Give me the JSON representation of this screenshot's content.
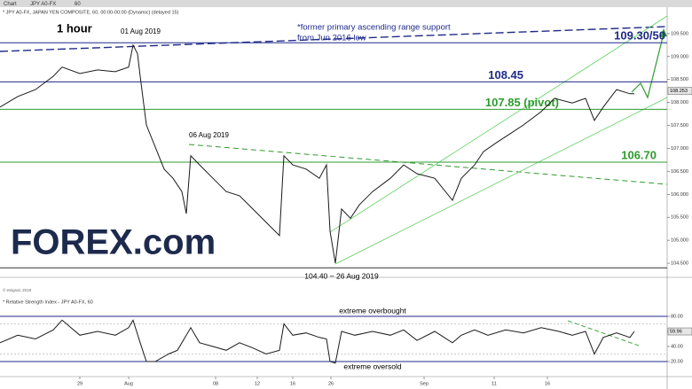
{
  "header": {
    "tab": "Chart",
    "symbol": "JPY A0-FX",
    "interval": "60",
    "description": "* JPY A0-FX, JAPAN YEN COMPOSITE, 60, 00:00-00:00 (Dynamic) (delayed 15)",
    "copyright": "© eSignal, 2019"
  },
  "logo": "FOREX.com",
  "chart_data": [
    {
      "type": "line",
      "title": "1 hour",
      "color": "#1a1a1a",
      "xlim": [
        0,
        752
      ],
      "ylim": [
        104.25,
        110.0
      ],
      "yticks": [
        {
          "value": 104.5,
          "label": "104.500"
        },
        {
          "value": 105,
          "label": "105.000"
        },
        {
          "value": 105.5,
          "label": "105.500"
        },
        {
          "value": 106,
          "label": "106.000"
        },
        {
          "value": 106.5,
          "label": "106.500"
        },
        {
          "value": 107,
          "label": "107.000"
        },
        {
          "value": 107.5,
          "label": "107.500"
        },
        {
          "value": 108,
          "label": "108.000"
        },
        {
          "value": 108.5,
          "label": "108.500"
        },
        {
          "value": 109,
          "label": "109.000"
        },
        {
          "value": 109.5,
          "label": "109.500"
        }
      ],
      "last_price": {
        "value": 108.253,
        "label": "108.253"
      },
      "x": [
        0,
        20,
        40,
        60,
        70,
        90,
        110,
        130,
        145,
        150,
        155,
        158,
        165,
        175,
        185,
        195,
        205,
        210,
        215,
        225,
        240,
        255,
        270,
        285,
        300,
        315,
        320,
        330,
        345,
        360,
        368,
        372,
        378,
        385,
        395,
        405,
        420,
        440,
        455,
        470,
        490,
        510,
        520,
        535,
        545,
        560,
        575,
        590,
        610,
        625,
        645,
        660,
        670,
        680,
        695,
        710,
        715
      ],
      "values": [
        107.9,
        108.13,
        108.28,
        108.57,
        108.77,
        108.63,
        108.71,
        108.67,
        108.77,
        109.25,
        109.06,
        108.57,
        107.51,
        107.03,
        106.55,
        106.35,
        106.06,
        105.58,
        106.84,
        106.64,
        106.35,
        106.06,
        105.97,
        105.68,
        105.39,
        105.1,
        106.84,
        106.64,
        106.55,
        106.35,
        106.64,
        105.2,
        104.5,
        105.68,
        105.48,
        105.77,
        106.06,
        106.35,
        106.64,
        106.45,
        106.35,
        105.87,
        106.35,
        106.64,
        106.93,
        107.13,
        107.32,
        107.51,
        107.8,
        108.09,
        107.99,
        108.09,
        107.61,
        107.9,
        108.28,
        108.19,
        108.19
      ],
      "levels": [
        {
          "value": 109.3,
          "label": "109.30/50",
          "color": "#1f2a8a"
        },
        {
          "value": 108.45,
          "label": "108.45",
          "color": "#1f2a8a"
        },
        {
          "value": 107.85,
          "label": "107.85 (pivot)",
          "color": "#2e9b2e"
        },
        {
          "value": 106.7,
          "label": "106.70",
          "color": "#2e9b2e"
        },
        {
          "value": 104.4,
          "label": "104.40 ~ 26 Aug 2019",
          "color": "#333333"
        }
      ],
      "annotations": [
        "01 Aug 2019",
        "06 Aug 2019",
        "*former primary ascending range support",
        "from Jun 2016 low"
      ]
    },
    {
      "type": "line",
      "title": "* Relative Strength Index - JPY A0-FX, 60",
      "color": "#1a1a1a",
      "xlim": [
        0,
        752
      ],
      "ylim": [
        0,
        100
      ],
      "yticks": [
        {
          "value": 20,
          "label": "20.00"
        },
        {
          "value": 40,
          "label": "40.00"
        },
        {
          "value": 60,
          "label": "60.00"
        },
        {
          "value": 80,
          "label": "80.00"
        }
      ],
      "last_value": 59.96,
      "levels": [
        {
          "value": 80,
          "label": "extreme overbought"
        },
        {
          "value": 20,
          "label": "extreme oversold"
        }
      ],
      "dashed_levels": [
        70,
        30
      ],
      "xticks": [
        {
          "value": 90,
          "label": "29"
        },
        {
          "value": 145,
          "label": "Aug"
        },
        {
          "value": 243,
          "label": "08"
        },
        {
          "value": 290,
          "label": "12"
        },
        {
          "value": 330,
          "label": "16"
        },
        {
          "value": 373,
          "label": "26"
        },
        {
          "value": 478,
          "label": "Sep"
        },
        {
          "value": 557,
          "label": "11"
        },
        {
          "value": 617,
          "label": "16"
        }
      ],
      "x": [
        0,
        20,
        40,
        60,
        70,
        90,
        110,
        130,
        145,
        150,
        158,
        165,
        175,
        190,
        200,
        215,
        225,
        240,
        255,
        270,
        285,
        300,
        315,
        320,
        330,
        345,
        360,
        368,
        372,
        378,
        385,
        400,
        420,
        440,
        455,
        470,
        490,
        510,
        520,
        535,
        550,
        570,
        590,
        610,
        630,
        645,
        660,
        670,
        680,
        695,
        710,
        715
      ],
      "values": [
        45,
        55,
        50,
        62,
        75,
        55,
        60,
        55,
        65,
        75,
        45,
        20,
        20,
        30,
        35,
        65,
        45,
        40,
        35,
        45,
        38,
        30,
        35,
        70,
        55,
        58,
        52,
        50,
        20,
        18,
        60,
        55,
        60,
        55,
        62,
        48,
        60,
        45,
        55,
        62,
        55,
        62,
        58,
        65,
        60,
        55,
        60,
        30,
        52,
        58,
        52,
        60
      ]
    }
  ]
}
